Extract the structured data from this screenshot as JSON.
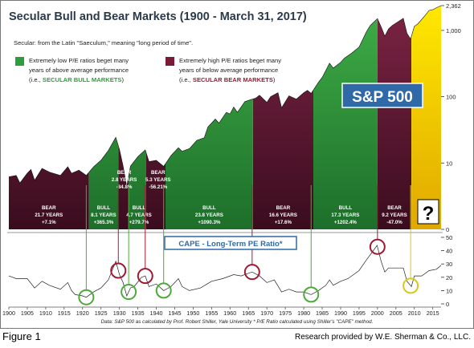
{
  "chart_data": {
    "type": "area",
    "title": "Secular Bull and Bear Markets (1900 - March 31, 2017)",
    "subtitle": "Secular: from the Latin \"Saeculum,\" meaning \"long period of time\".",
    "legend": [
      {
        "text": "Extremely low P/E ratios beget many years of above average performance",
        "sub_prefix": "(i.e., ",
        "sub_em": "SECULAR BULL MARKETS",
        "sub_suffix": ")",
        "color": "#2e9e3c",
        "line1": "Extremely low P/E ratios beget many",
        "line2": "years of above average performance"
      },
      {
        "text": "Extremely high P/E ratios beget many years of below average performance",
        "sub_prefix": "(i.e., ",
        "sub_em": "SECULAR BEAR MARKETS",
        "sub_suffix": ")",
        "color": "#7a1b36",
        "line1": "Extremely high P/E ratios beget many",
        "line2": "years of below average performance"
      }
    ],
    "sp500_label": "S&P 500",
    "question_mark": "?",
    "y_ticks": [
      "2,362",
      "1,000",
      "100",
      "10",
      "0"
    ],
    "y_tick_values": [
      2362,
      1000,
      100,
      10,
      1
    ],
    "x_ticks": [
      "1900",
      "1905",
      "1910",
      "1915",
      "1920",
      "1925",
      "1930",
      "1935",
      "1940",
      "1945",
      "1950",
      "1955",
      "1960",
      "1965",
      "1970",
      "1975",
      "1980",
      "1985",
      "1990",
      "1995",
      "2000",
      "2005",
      "2010",
      "2015"
    ],
    "x_range": [
      1900,
      2017.25
    ],
    "periods": [
      {
        "type": "bear",
        "start": 1900,
        "end": 1921.7,
        "label": [
          "BEAR",
          "21.7 YEARS",
          "+7.1%"
        ]
      },
      {
        "type": "bull",
        "start": 1921.7,
        "end": 1929.7,
        "label": [
          "BULL",
          "8.1 YEARS",
          "+365.3%"
        ]
      },
      {
        "type": "bear",
        "start": 1929.7,
        "end": 1932.5,
        "label": [
          "BEAR",
          "2.8 YEARS",
          "-84.8%"
        ]
      },
      {
        "type": "bull",
        "start": 1932.5,
        "end": 1937.2,
        "label": [
          "BULL",
          "4.7 YEARS",
          "+279.7%"
        ]
      },
      {
        "type": "bear",
        "start": 1937.2,
        "end": 1942.5,
        "label": [
          "BEAR",
          "5.3 YEARS",
          "-56.21%"
        ]
      },
      {
        "type": "bull",
        "start": 1942.5,
        "end": 1966.2,
        "label": [
          "BULL",
          "23.8 YEARS",
          "+1090.3%"
        ]
      },
      {
        "type": "bear",
        "start": 1966.2,
        "end": 1982.6,
        "label": [
          "BEAR",
          "16.6 YEARS",
          "+17.6%"
        ]
      },
      {
        "type": "bull",
        "start": 1982.6,
        "end": 2000.0,
        "label": [
          "BULL",
          "17.3 YEARS",
          "+1202.4%"
        ]
      },
      {
        "type": "bear",
        "start": 2000.0,
        "end": 2009.2,
        "label": [
          "BEAR",
          "9.2 YEARS",
          "-47.0%"
        ]
      },
      {
        "type": "unknown",
        "start": 2009.2,
        "end": 2017.25,
        "label": [
          "?"
        ]
      }
    ],
    "sp500": {
      "x": [
        1900,
        1902,
        1903,
        1905,
        1906,
        1907,
        1909,
        1911,
        1914,
        1916,
        1917,
        1919,
        1921,
        1923,
        1925,
        1927,
        1929,
        1930,
        1931,
        1932,
        1933,
        1935,
        1937,
        1938,
        1940,
        1942,
        1944,
        1946,
        1947,
        1949,
        1951,
        1953,
        1954,
        1956,
        1957,
        1959,
        1960,
        1961,
        1962,
        1964,
        1966,
        1967,
        1968,
        1970,
        1971,
        1973,
        1974,
        1976,
        1978,
        1980,
        1981,
        1982,
        1984,
        1985,
        1987,
        1988,
        1990,
        1991,
        1993,
        1995,
        1997,
        1998,
        2000,
        2001,
        2002,
        2003,
        2004,
        2007,
        2008,
        2009,
        2010,
        2011,
        2013,
        2014,
        2015,
        2016,
        2017.25
      ],
      "y": [
        6.2,
        6.5,
        5.0,
        7.0,
        8.0,
        5.5,
        8.3,
        7.3,
        6.5,
        8.8,
        7.0,
        7.8,
        6.5,
        8.8,
        11.0,
        15.5,
        24.4,
        16.0,
        9.0,
        4.4,
        9.0,
        12.5,
        15.8,
        10.5,
        11.0,
        8.9,
        13.0,
        17.0,
        15.0,
        16.5,
        22.0,
        24.0,
        35.0,
        46.0,
        40.0,
        58.0,
        55.0,
        70.0,
        58.0,
        84.0,
        92.0,
        95.0,
        105.0,
        82.0,
        100.0,
        115.0,
        68.0,
        103.0,
        92.0,
        115.0,
        125.0,
        112.0,
        165.0,
        195.0,
        320.0,
        270.0,
        330.0,
        380.0,
        455.0,
        560.0,
        950.0,
        1180.0,
        1500.0,
        1130.0,
        820.0,
        1050.0,
        1180.0,
        1520.0,
        900.0,
        740.0,
        1150.0,
        1260.0,
        1700.0,
        2000.0,
        2050.0,
        2200.0,
        2362.0
      ]
    },
    "cape": {
      "label": "CAPE - Long-Term PE Ratio*",
      "y_ticks": [
        "50",
        "40",
        "30",
        "20",
        "10",
        "0"
      ],
      "y_tick_values": [
        50,
        40,
        30,
        20,
        10,
        0
      ],
      "x": [
        1900,
        1902,
        1905,
        1907,
        1909,
        1911,
        1914,
        1916,
        1917,
        1918,
        1920,
        1921,
        1923,
        1925,
        1927,
        1929,
        1930,
        1931,
        1932,
        1933,
        1934,
        1936,
        1937,
        1938,
        1940,
        1942,
        1944,
        1946,
        1947,
        1949,
        1952,
        1955,
        1958,
        1961,
        1963,
        1966,
        1968,
        1970,
        1972,
        1974,
        1976,
        1978,
        1980,
        1982,
        1984,
        1986,
        1987,
        1988,
        1990,
        1992,
        1995,
        1997,
        1999.9,
        2001,
        2002,
        2003,
        2004,
        2007,
        2008,
        2009.2,
        2010,
        2012,
        2014,
        2016,
        2017.25
      ],
      "y": [
        21,
        19,
        19,
        12,
        17,
        14,
        11,
        16,
        10,
        7,
        6,
        5,
        9,
        12,
        18,
        32,
        22,
        16,
        6,
        12,
        13,
        20,
        21,
        13,
        15,
        10,
        13,
        19,
        13,
        10,
        12,
        17,
        19,
        22,
        21,
        24,
        21,
        16,
        18,
        9,
        11,
        9,
        9,
        7,
        10,
        14,
        18,
        14,
        17,
        19,
        25,
        33,
        44,
        32,
        24,
        27,
        27,
        27,
        17,
        13,
        21,
        21,
        25,
        26,
        29
      ]
    },
    "cape_circles": [
      {
        "year": 1921,
        "color": "#4caa3a"
      },
      {
        "year": 1929.7,
        "color": "#9e1b32"
      },
      {
        "year": 1932.5,
        "color": "#4caa3a"
      },
      {
        "year": 1937,
        "color": "#9e1b32"
      },
      {
        "year": 1942,
        "color": "#4caa3a"
      },
      {
        "year": 1966,
        "color": "#9e1b32"
      },
      {
        "year": 1982,
        "color": "#4caa3a"
      },
      {
        "year": 2000,
        "color": "#9e1b32"
      },
      {
        "year": 2009,
        "color": "#d9c61a"
      }
    ],
    "footnote": "Data: S&P 500 as calculated by Prof. Robert Shiller, Yale University   * P/E Ratio calculated using Shiller's \"CAPE\" method.",
    "colors": {
      "bull": "#2e9e3c",
      "bear": "#5a1530",
      "unknown": "#f0c800",
      "title": "#2b3a4a",
      "sp500_box": "#2f69a8",
      "cape_label": "#2f69a8",
      "bull_text": "#2e9e3c",
      "bear_text": "#9e1b32"
    }
  },
  "figure_label": "Figure 1",
  "credit": "Research provided by W.E. Sherman & Co., LLC."
}
